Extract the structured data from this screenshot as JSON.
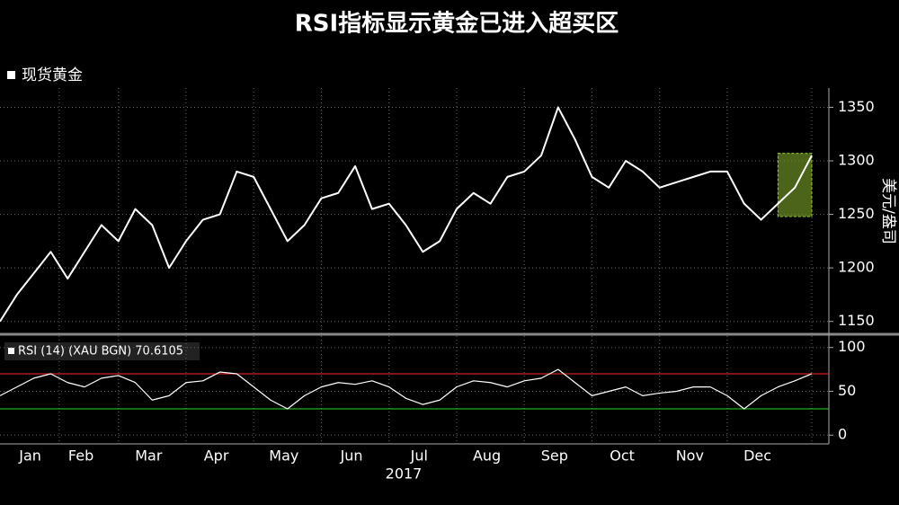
{
  "chart_data": [
    {
      "type": "line",
      "title": "RSI指标显示黄金已进入超买区",
      "series": [
        {
          "name": "现货黄金",
          "color": "#ffffff",
          "values": [
            1150,
            1175,
            1195,
            1215,
            1190,
            1215,
            1240,
            1225,
            1255,
            1240,
            1200,
            1225,
            1245,
            1250,
            1290,
            1285,
            1255,
            1225,
            1240,
            1265,
            1270,
            1295,
            1255,
            1260,
            1240,
            1215,
            1225,
            1255,
            1270,
            1260,
            1285,
            1290,
            1305,
            1350,
            1320,
            1285,
            1275,
            1300,
            1290,
            1275,
            1280,
            1285,
            1290,
            1290,
            1260,
            1245,
            1260,
            1275,
            1305
          ]
        }
      ],
      "ylabel": "美元/盎司",
      "ylim": [
        1138,
        1368
      ],
      "yticks": [
        1150,
        1200,
        1250,
        1300,
        1350
      ],
      "grid": true,
      "highlight": {
        "ylim": [
          1248,
          1307
        ],
        "color": "#6b8e23"
      }
    },
    {
      "type": "line",
      "series": [
        {
          "name": "RSI (14) (XAU BGN) 70.6105",
          "color": "#ffffff",
          "values": [
            45,
            55,
            65,
            70,
            60,
            55,
            65,
            68,
            60,
            40,
            45,
            60,
            62,
            72,
            70,
            55,
            40,
            30,
            45,
            55,
            60,
            58,
            62,
            55,
            42,
            35,
            40,
            55,
            62,
            60,
            55,
            62,
            65,
            75,
            60,
            45,
            50,
            55,
            45,
            48,
            50,
            55,
            55,
            45,
            30,
            45,
            55,
            62,
            70
          ]
        }
      ],
      "categories": [
        null,
        null,
        "Jan",
        null,
        null,
        "Feb",
        null,
        null,
        null,
        "Mar",
        null,
        null,
        null,
        "Apr",
        null,
        null,
        null,
        "May",
        null,
        null,
        null,
        "Jun",
        null,
        null,
        null,
        "Jul",
        null,
        null,
        null,
        "Aug",
        null,
        null,
        null,
        "Sep",
        null,
        null,
        null,
        "Oct",
        null,
        null,
        null,
        "Nov",
        null,
        null,
        null,
        "Dec",
        null,
        null,
        null
      ],
      "xlabel": "2017",
      "ylim": [
        -10,
        111
      ],
      "yticks": [
        0,
        50,
        100
      ],
      "grid": true,
      "reference_lines": [
        {
          "value": 70,
          "color": "#d02020"
        },
        {
          "value": 30,
          "color": "#20b020"
        }
      ]
    }
  ]
}
